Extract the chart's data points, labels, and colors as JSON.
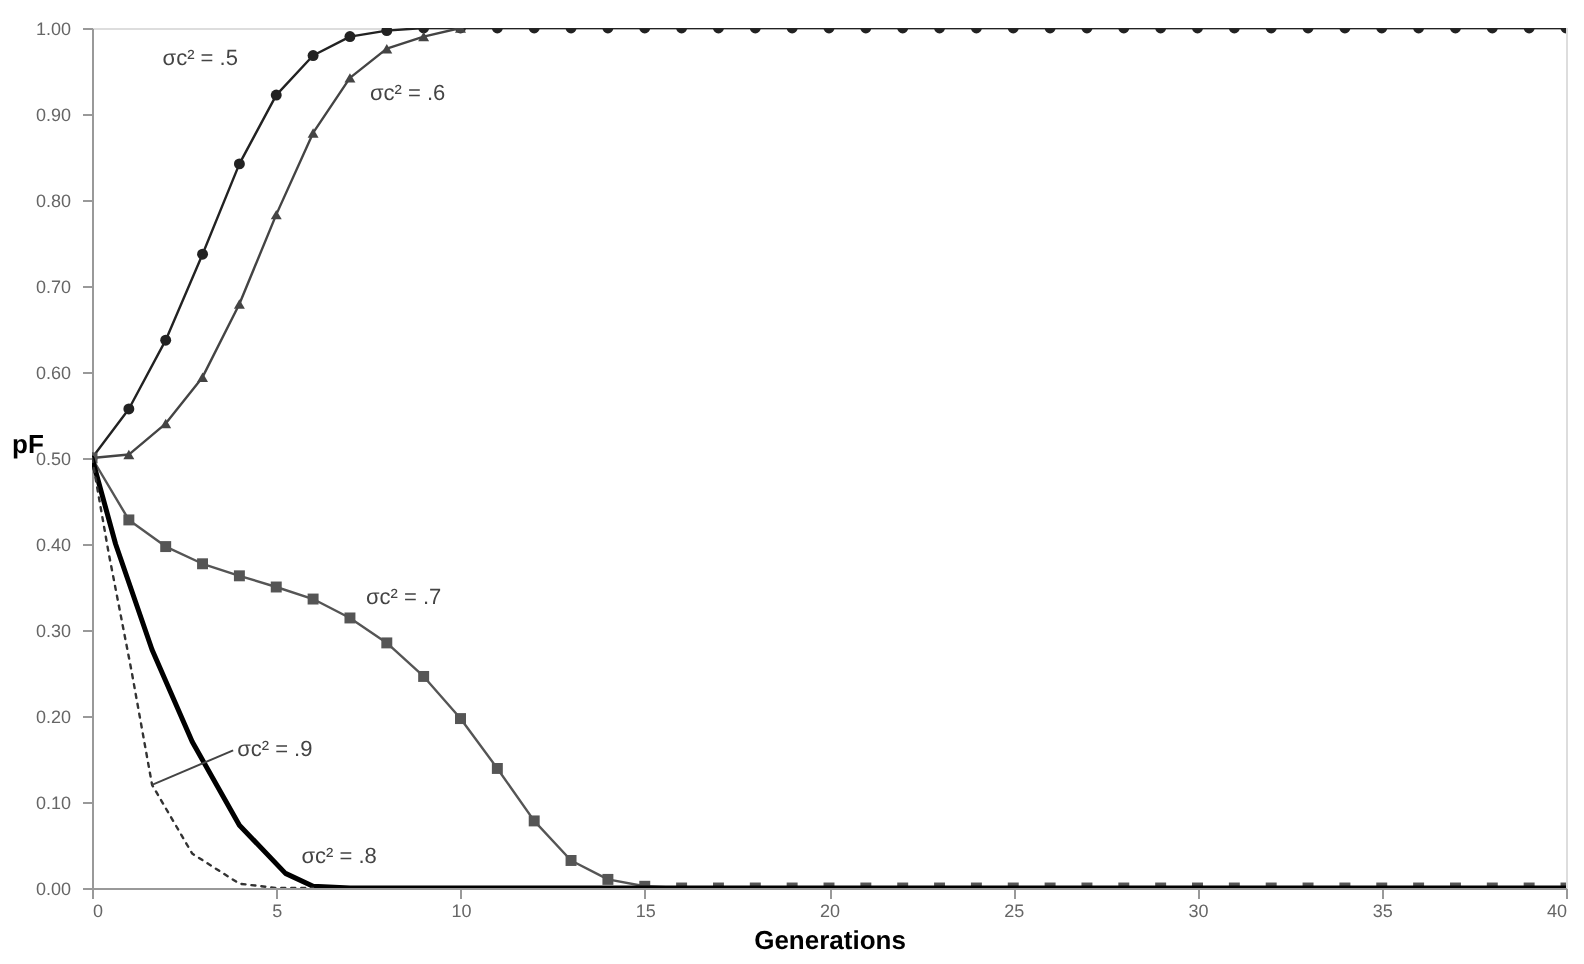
{
  "chart_data": {
    "type": "line",
    "xlabel": "Generations",
    "ylabel": "pF",
    "xlim": [
      0,
      40
    ],
    "xticks": [
      0,
      5,
      10,
      15,
      20,
      25,
      30,
      35,
      40
    ],
    "ylim": [
      0,
      1
    ],
    "yticks": [
      {
        "value": 0,
        "label": "0.00"
      },
      {
        "value": 0.1,
        "label": "0.10"
      },
      {
        "value": 0.2,
        "label": "0.20"
      },
      {
        "value": 0.3,
        "label": "0.30"
      },
      {
        "value": 0.4,
        "label": "0.40"
      },
      {
        "value": 0.5,
        "label": "0.50"
      },
      {
        "value": 0.6,
        "label": "0.60"
      },
      {
        "value": 0.7,
        "label": "0.70"
      },
      {
        "value": 0.8,
        "label": "0.80"
      },
      {
        "value": 0.9,
        "label": "0.90"
      },
      {
        "value": 1,
        "label": "1.00"
      }
    ],
    "grid": false,
    "series": [
      {
        "color": "#222222",
        "marker": "circle",
        "line_style": "solid",
        "x": [
          0,
          1,
          2,
          3,
          4,
          5,
          6,
          7,
          8,
          9,
          10,
          11,
          12,
          13,
          14,
          15,
          16,
          17,
          18,
          19,
          20,
          21,
          22,
          23,
          24,
          25,
          26,
          27,
          28,
          29,
          30,
          31,
          32,
          33,
          34,
          35,
          36,
          37,
          38,
          39,
          40
        ],
        "values": [
          0.5,
          0.557,
          0.637,
          0.737,
          0.842,
          0.922,
          0.968,
          0.99,
          0.997,
          1,
          1,
          1,
          1,
          1,
          1,
          1,
          1,
          1,
          1,
          1,
          1,
          1,
          1,
          1,
          1,
          1,
          1,
          1,
          1,
          1,
          1,
          1,
          1,
          1,
          1,
          1,
          1,
          1,
          1,
          1,
          1
        ]
      },
      {
        "color": "#444444",
        "marker": "triangle",
        "line_style": "solid",
        "x": [
          0,
          1,
          2,
          3,
          4,
          5,
          6,
          7,
          8,
          9,
          10
        ],
        "values": [
          0.5,
          0.504,
          0.54,
          0.594,
          0.679,
          0.783,
          0.878,
          0.942,
          0.976,
          0.99,
          1
        ]
      },
      {
        "color": "#555555",
        "marker": "square",
        "line_style": "solid",
        "x": [
          0,
          1,
          2,
          3,
          4,
          5,
          6,
          7,
          8,
          9,
          10,
          11,
          12,
          13,
          14,
          15,
          16,
          17,
          18,
          19,
          20,
          21,
          22,
          23,
          24,
          25,
          26,
          27,
          28,
          29,
          30,
          31,
          32,
          33,
          34,
          35,
          36,
          37,
          38,
          39,
          40
        ],
        "values": [
          0.5,
          0.428,
          0.397,
          0.377,
          0.363,
          0.35,
          0.336,
          0.314,
          0.285,
          0.246,
          0.197,
          0.139,
          0.078,
          0.032,
          0.01,
          0.002,
          0,
          0,
          0,
          0,
          0,
          0,
          0,
          0,
          0,
          0,
          0,
          0,
          0,
          0,
          0,
          0,
          0,
          0,
          0,
          0,
          0,
          0,
          0,
          0,
          0
        ]
      },
      {
        "color": "#000000",
        "marker": "none",
        "line_style": "solid",
        "x": [
          0,
          0.64,
          1.63,
          2.72,
          4,
          5.25,
          6,
          7,
          40
        ],
        "values": [
          0.5,
          0.4,
          0.277,
          0.17,
          0.073,
          0.017,
          0.002,
          0,
          0
        ]
      },
      {
        "color": "#333333",
        "marker": "none",
        "line_style": "dotted",
        "x": [
          0,
          0.45,
          1.07,
          1.63,
          2.72,
          4,
          5,
          6
        ],
        "values": [
          0.5,
          0.39,
          0.253,
          0.12,
          0.04,
          0.005,
          0,
          0
        ]
      }
    ],
    "annotations": [
      {
        "text": "σc² = .5",
        "x": 5,
        "y": 0.922
      },
      {
        "text": "σc² = .6",
        "x": 7,
        "y": 0.942
      },
      {
        "text": "σc² = .7",
        "x": 7,
        "y": 0.314
      },
      {
        "text": "σc² = .9",
        "x": 1.63,
        "y": 0.12
      },
      {
        "text": "σc² = .8",
        "x": 5.25,
        "y": 0.017
      }
    ]
  }
}
